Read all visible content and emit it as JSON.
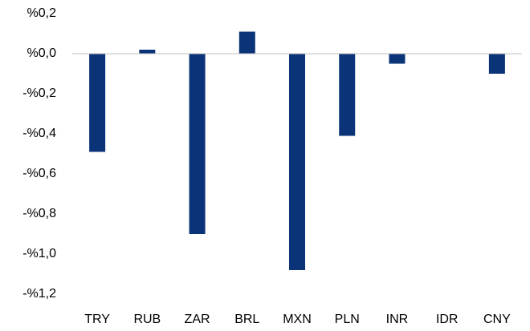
{
  "chart_data": {
    "type": "bar",
    "categories": [
      "TRY",
      "RUB",
      "ZAR",
      "BRL",
      "MXN",
      "PLN",
      "INR",
      "IDR",
      "CNY"
    ],
    "values": [
      -0.49,
      0.02,
      -0.9,
      0.11,
      -1.08,
      -0.41,
      -0.05,
      0,
      -0.1
    ],
    "color": "#0b3478",
    "ylim": [
      -1.2,
      0.2
    ],
    "yticks": [
      {
        "value": -1.2,
        "label": "-%1,2"
      },
      {
        "value": -1.0,
        "label": "-%1,0"
      },
      {
        "value": -0.8,
        "label": "-%0,8"
      },
      {
        "value": -0.6,
        "label": "-%0,6"
      },
      {
        "value": -0.4,
        "label": "-%0,4"
      },
      {
        "value": -0.2,
        "label": "-%0,2"
      },
      {
        "value": 0,
        "label": "%0,0"
      },
      {
        "value": 0.2,
        "label": "%0,2"
      }
    ],
    "grid": false
  }
}
